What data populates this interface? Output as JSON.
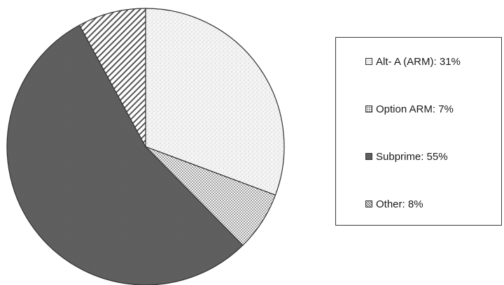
{
  "chart_data": {
    "type": "pie",
    "categories": [
      "Alt- A (ARM)",
      "Option ARM",
      "Subprime",
      "Other"
    ],
    "values": [
      31,
      7,
      55,
      8
    ],
    "value_labels": [
      "31%",
      "7%",
      "55%",
      "8%"
    ],
    "start_angle_deg": 0,
    "direction": "clockwise",
    "legend": {
      "position": "right",
      "items": [
        {
          "label": "Alt- A (ARM)",
          "value": "31%",
          "pattern": "light-stipple",
          "fill": "#e8e8e8"
        },
        {
          "label": "Option ARM",
          "value": "7%",
          "pattern": "dots",
          "fill": "#d2d2d2"
        },
        {
          "label": "Subprime",
          "value": "55%",
          "pattern": "solid",
          "fill": "#5e5e5e"
        },
        {
          "label": "Other",
          "value": "8%",
          "pattern": "diagonal-hatch",
          "fill": "#f2f2f2"
        }
      ]
    },
    "colors": {
      "outline": "#333333",
      "dark": "#5e5e5e",
      "light": "#f4f4f4"
    }
  }
}
